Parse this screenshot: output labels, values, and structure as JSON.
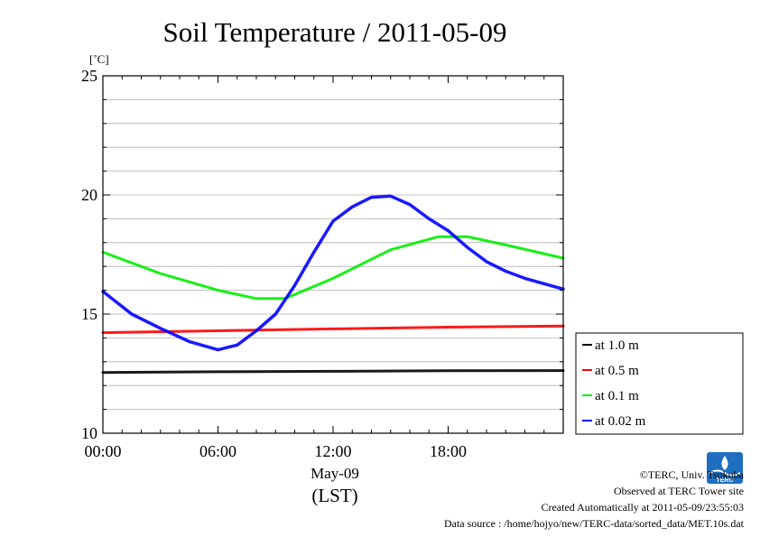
{
  "chart_data": {
    "type": "line",
    "title": "Soil Temperature / 2011-05-09",
    "ylabel": "[˚C]",
    "xlabel_date": "May-09",
    "xlabel_unit": "(LST)",
    "ylim": [
      10,
      25
    ],
    "yticks": [
      10,
      15,
      20,
      25
    ],
    "xlim": [
      0,
      24
    ],
    "xticks": [
      0,
      6,
      12,
      18
    ],
    "xtick_labels": [
      "00:00",
      "06:00",
      "12:00",
      "18:00"
    ],
    "grid": true,
    "legend_position": "outside-right-bottom",
    "series": [
      {
        "name": "at 1.0 m",
        "color": "#000000",
        "x": [
          0,
          6,
          12,
          18,
          24
        ],
        "values": [
          12.55,
          12.58,
          12.6,
          12.62,
          12.63
        ]
      },
      {
        "name": "at 0.5 m",
        "color": "#ff0000",
        "x": [
          0,
          6,
          12,
          18,
          24
        ],
        "values": [
          14.22,
          14.3,
          14.38,
          14.45,
          14.5
        ]
      },
      {
        "name": "at 0.1 m",
        "color": "#00ee00",
        "x": [
          0,
          3,
          6,
          8,
          9.5,
          12,
          15,
          17.5,
          19,
          21,
          24
        ],
        "values": [
          17.6,
          16.7,
          16.0,
          15.65,
          15.65,
          16.5,
          17.7,
          18.25,
          18.25,
          17.9,
          17.35
        ]
      },
      {
        "name": "at 0.02 m",
        "color": "#0000ff",
        "x": [
          0,
          1.5,
          3,
          4.5,
          6,
          7,
          8,
          9,
          10,
          11,
          12,
          13,
          14,
          15,
          16,
          17,
          18,
          19,
          20,
          21,
          22,
          24
        ],
        "values": [
          15.95,
          15.0,
          14.4,
          13.85,
          13.5,
          13.7,
          14.3,
          15.0,
          16.2,
          17.6,
          18.9,
          19.5,
          19.9,
          19.95,
          19.6,
          19.0,
          18.5,
          17.8,
          17.2,
          16.8,
          16.5,
          16.05
        ]
      }
    ]
  },
  "footer": {
    "copyright": "©TERC, Univ. Tsukuba",
    "observed": "Observed at TERC Tower site",
    "created": "Created Automatically at 2011-05-09/23:55:03",
    "source": "Data source : /home/hojyo/new/TERC-data/sorted_data/MET.10s.dat",
    "logo_text": "TERC"
  }
}
